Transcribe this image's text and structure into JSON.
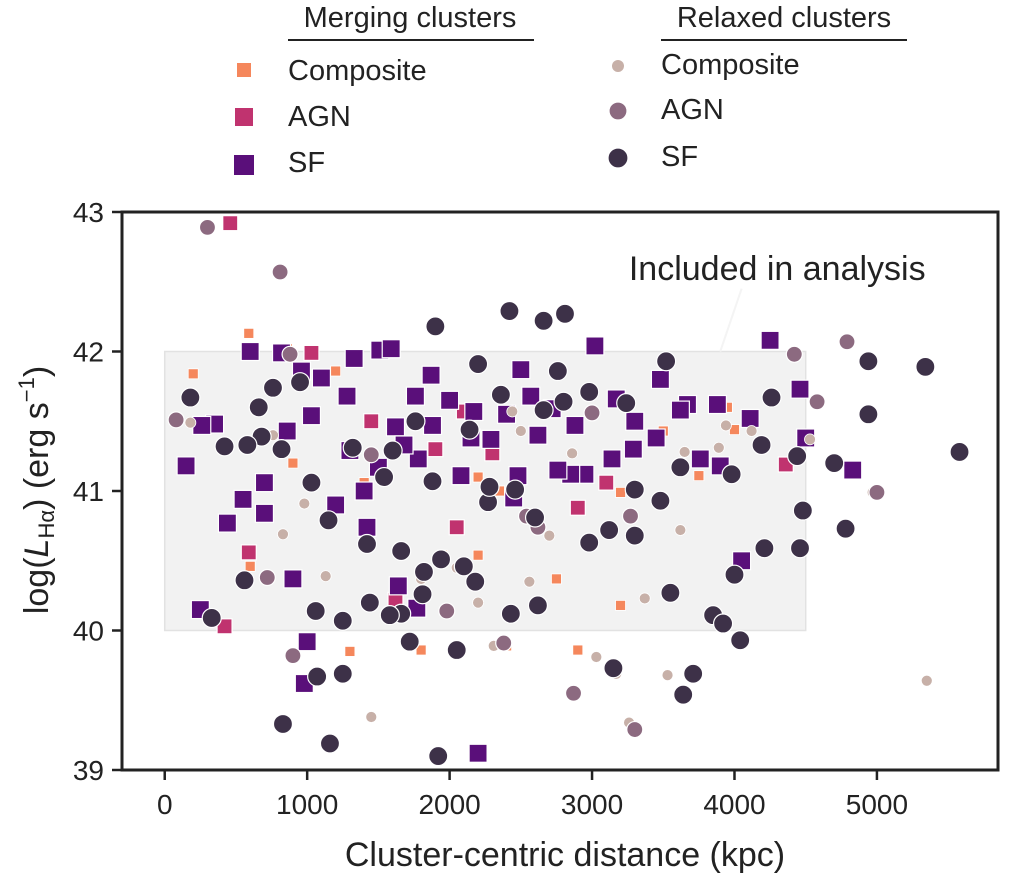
{
  "chart_data": {
    "type": "scatter",
    "title": "",
    "xlabel": "Cluster-centric distance (kpc)",
    "ylabel_prefix": "log(",
    "ylabel_L": "L",
    "ylabel_sub": "Hα",
    "ylabel_suffix": ") (erg s",
    "ylabel_exp": "−1",
    "ylabel_close": ")",
    "xlim": [
      -300,
      5850
    ],
    "ylim": [
      39,
      43
    ],
    "xticks": [
      0,
      1000,
      2000,
      3000,
      4000,
      5000
    ],
    "xtick_labels": [
      "0",
      "1000",
      "2000",
      "3000",
      "4000",
      "5000"
    ],
    "yticks": [
      39,
      40,
      41,
      42,
      43
    ],
    "ytick_labels": [
      "39",
      "40",
      "41",
      "42",
      "43"
    ],
    "included_region": {
      "x": [
        0,
        4500
      ],
      "y": [
        40,
        42
      ],
      "label": "Included in analysis"
    },
    "legend": {
      "merging_title": "Merging clusters",
      "relaxed_title": "Relaxed clusters",
      "merging_entries": [
        "Composite",
        "AGN",
        "SF"
      ],
      "relaxed_entries": [
        "Composite",
        "AGN",
        "SF"
      ]
    },
    "colors": {
      "merging_composite": "#f5875c",
      "merging_agn": "#c0336f",
      "merging_sf": "#5a0f7a",
      "relaxed_composite": "#c7b0a8",
      "relaxed_agn": "#8c6a80",
      "relaxed_sf": "#3d3148",
      "region_fill": "#f2f2f2",
      "region_edge": "#e2e2e2",
      "axis": "#222222"
    },
    "series": [
      {
        "name": "Merging clusters – Composite",
        "marker": "square",
        "size": "small",
        "color_key": "merging_composite",
        "x": [
          590,
          860,
          1200,
          1400,
          1950,
          2200,
          2400,
          2750,
          2900,
          3200,
          3500,
          3750,
          3950,
          4000,
          200,
          600,
          900,
          1800,
          2350,
          3200,
          2200,
          1300
        ],
        "y": [
          42.13,
          42.02,
          41.86,
          41.06,
          40.54,
          40.54,
          39.89,
          40.37,
          39.86,
          40.18,
          41.43,
          41.11,
          41.6,
          41.44,
          41.84,
          40.46,
          41.2,
          39.86,
          41.0,
          40.99,
          41.1,
          39.85
        ]
      },
      {
        "name": "Merging clusters – AGN",
        "marker": "square",
        "size": "medium",
        "color_key": "merging_agn",
        "x": [
          460,
          1030,
          590,
          2100,
          2050,
          2300,
          1620,
          4360,
          3100,
          1450,
          420,
          2900,
          1900
        ],
        "y": [
          42.92,
          41.99,
          40.56,
          41.57,
          40.74,
          41.27,
          40.22,
          41.19,
          41.06,
          41.5,
          40.03,
          40.88,
          41.3
        ]
      },
      {
        "name": "Merging clusters – SF",
        "marker": "square",
        "size": "large",
        "color_key": "merging_sf",
        "x": [
          600,
          820,
          960,
          1100,
          1280,
          1330,
          1510,
          1590,
          1760,
          1870,
          2000,
          2170,
          2290,
          2500,
          2570,
          2720,
          2880,
          3020,
          3170,
          3300,
          3480,
          3670,
          3880,
          4110,
          4250,
          4460,
          4500,
          4830,
          1000,
          980,
          250,
          440,
          700,
          3140,
          3620,
          2620,
          2950,
          2450,
          1640,
          1770,
          2850,
          700,
          550,
          350,
          150,
          1200,
          1420,
          2200,
          3290,
          3450,
          3900,
          4050,
          2400,
          2150,
          1780,
          1500,
          1030,
          260,
          1300,
          1620,
          3760,
          860,
          1680,
          2480,
          2760,
          2080,
          900,
          1880,
          1400
        ],
        "y": [
          42.0,
          41.99,
          41.86,
          41.81,
          41.68,
          41.95,
          42.01,
          42.02,
          41.68,
          41.83,
          41.65,
          41.57,
          41.37,
          41.87,
          41.68,
          41.59,
          41.47,
          42.04,
          41.66,
          41.5,
          41.8,
          41.62,
          41.62,
          41.52,
          42.08,
          41.73,
          41.38,
          41.15,
          39.92,
          39.62,
          40.15,
          40.77,
          40.84,
          41.23,
          41.58,
          41.4,
          41.12,
          40.95,
          40.32,
          40.16,
          41.12,
          41.06,
          40.94,
          41.48,
          41.18,
          40.9,
          40.74,
          39.12,
          41.3,
          41.38,
          41.18,
          40.5,
          41.55,
          41.38,
          41.23,
          41.17,
          41.54,
          41.47,
          41.29,
          41.46,
          41.23,
          41.43,
          41.33,
          41.11,
          41.15,
          41.11,
          40.37,
          41.47,
          41.0
        ]
      },
      {
        "name": "Relaxed clusters – Composite",
        "marker": "circle",
        "size": "small",
        "color_key": "relaxed_composite",
        "x": [
          180,
          760,
          1130,
          1450,
          1560,
          1800,
          2200,
          2310,
          2560,
          2700,
          2860,
          3030,
          3170,
          3260,
          3370,
          3530,
          3890,
          4120,
          4530,
          4970,
          5350,
          2440,
          1670,
          980,
          830,
          3940,
          3620,
          2050,
          3650,
          2500
        ],
        "y": [
          41.49,
          41.4,
          40.39,
          39.38,
          40.09,
          40.37,
          40.2,
          39.89,
          40.35,
          40.68,
          41.27,
          39.81,
          39.69,
          39.34,
          40.23,
          39.68,
          41.31,
          41.43,
          41.37,
          40.99,
          39.64,
          41.57,
          40.13,
          40.91,
          40.69,
          41.47,
          40.72,
          40.45,
          41.28,
          41.43
        ]
      },
      {
        "name": "Relaxed clusters – AGN",
        "marker": "circle",
        "size": "medium",
        "color_key": "relaxed_agn",
        "x": [
          80,
          300,
          810,
          880,
          1980,
          2380,
          2540,
          2620,
          2870,
          3300,
          3270,
          4420,
          4790,
          5000,
          4580,
          720,
          900,
          3000,
          1450
        ],
        "y": [
          41.51,
          42.89,
          42.57,
          41.98,
          40.14,
          39.91,
          40.82,
          40.74,
          39.55,
          39.29,
          40.82,
          41.98,
          42.07,
          40.99,
          41.64,
          40.38,
          39.82,
          41.56,
          41.26
        ],
        "note": "medium-sized mauve circles"
      },
      {
        "name": "Relaxed clusters – SF",
        "marker": "circle",
        "size": "large",
        "color_key": "relaxed_sf",
        "x": [
          560,
          680,
          830,
          1070,
          1250,
          1440,
          1720,
          1920,
          2050,
          2180,
          2420,
          2660,
          2810,
          2980,
          3120,
          3300,
          3480,
          3640,
          3850,
          4040,
          4210,
          4480,
          4700,
          4940,
          5340,
          5580,
          4780,
          4440,
          4190,
          4000,
          3920,
          3710,
          3550,
          3150,
          2980,
          2760,
          2620,
          2430,
          2270,
          2100,
          1940,
          1810,
          1660,
          1580,
          1420,
          1250,
          1160,
          1060,
          820,
          580,
          330,
          180,
          1900,
          2200,
          1150,
          1600,
          1820,
          2460,
          3620,
          4940,
          4460,
          3240,
          2600,
          2280,
          1760,
          1320,
          1030,
          950,
          760,
          420,
          660,
          1540,
          1880,
          2360,
          2800,
          3520,
          3980,
          4260,
          3300,
          2660,
          2140,
          1660
        ],
        "y": [
          40.36,
          41.39,
          39.33,
          39.67,
          39.69,
          40.2,
          39.92,
          39.1,
          39.86,
          40.35,
          42.29,
          42.22,
          42.27,
          40.63,
          40.72,
          40.68,
          40.93,
          39.54,
          40.11,
          39.93,
          40.59,
          40.86,
          41.2,
          41.55,
          41.89,
          41.28,
          40.73,
          41.25,
          41.33,
          40.4,
          40.05,
          39.69,
          40.27,
          39.73,
          41.71,
          41.86,
          40.18,
          40.12,
          40.92,
          40.46,
          40.51,
          40.26,
          40.12,
          40.11,
          40.62,
          40.07,
          39.19,
          40.14,
          41.3,
          41.33,
          40.09,
          41.67,
          42.18,
          41.91,
          40.79,
          41.29,
          40.42,
          41.01,
          41.17,
          41.93,
          40.59,
          41.63,
          40.81,
          41.03,
          41.5,
          41.31,
          41.06,
          41.78,
          41.74,
          41.32,
          41.6,
          41.1,
          41.07,
          41.69,
          41.64,
          41.93,
          41.12,
          41.67,
          41.01,
          41.58,
          41.44,
          40.57
        ]
      }
    ]
  }
}
